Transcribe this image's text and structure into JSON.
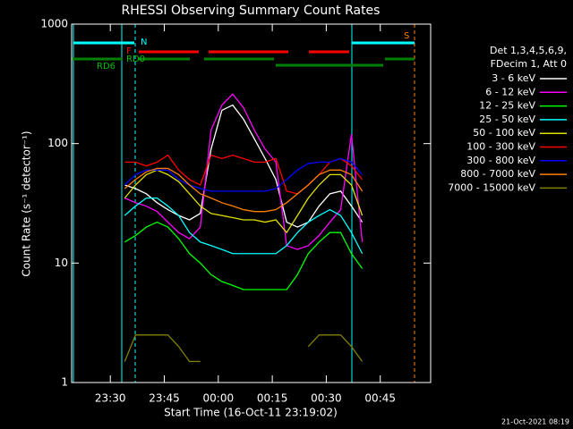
{
  "chart_data": {
    "type": "line",
    "title": "RHESSI Observing Summary Count Rates",
    "x_label": "Start Time (16-Oct-11 23:19:02)",
    "y_label": "Count Rate (s⁻¹ detector⁻¹)",
    "legend_header": [
      "Det 1,3,4,5,6,9,",
      "FDecim 1, Att 0"
    ],
    "annotations": [
      "N",
      "F",
      "RD0",
      "RD6",
      "S"
    ],
    "footer": "21-Oct-2021 08:19",
    "log_y": true,
    "xlim": [
      19.25,
      119
    ],
    "ylim": [
      1,
      1000
    ],
    "xticks": [
      {
        "value": 30,
        "label": "23:30"
      },
      {
        "value": 45,
        "label": "23:45"
      },
      {
        "value": 60,
        "label": "00:00"
      },
      {
        "value": 75,
        "label": "00:15"
      },
      {
        "value": 90,
        "label": "00:30"
      },
      {
        "value": 105,
        "label": "00:45"
      }
    ],
    "yticks": [
      1,
      10,
      100,
      1000
    ],
    "x": [
      34,
      37,
      40,
      43,
      46,
      49,
      52,
      55,
      58,
      61,
      64,
      67,
      70,
      73,
      76,
      79,
      82,
      85,
      88,
      91,
      94,
      97,
      100
    ],
    "series": [
      {
        "name": "3 - 6 keV",
        "color": "#ffffff",
        "values": [
          45,
          42,
          38,
          32,
          28,
          25,
          23,
          26,
          90,
          190,
          210,
          160,
          110,
          75,
          50,
          22,
          20,
          22,
          30,
          38,
          40,
          30,
          22
        ]
      },
      {
        "name": "6 - 12 keV",
        "color": "#ff00ff",
        "values": [
          35,
          32,
          30,
          27,
          22,
          18,
          16,
          20,
          130,
          210,
          260,
          200,
          130,
          90,
          70,
          14,
          13,
          14,
          17,
          22,
          28,
          120,
          15
        ]
      },
      {
        "name": "12 - 25 keV",
        "color": "#00ff00",
        "values": [
          15,
          17,
          20,
          22,
          20,
          16,
          12,
          10,
          8,
          7,
          6.5,
          6,
          6,
          6,
          6,
          6,
          8,
          12,
          15,
          18,
          18,
          12,
          9
        ]
      },
      {
        "name": "25 - 50 keV",
        "color": "#00ffff",
        "values": [
          25,
          30,
          35,
          35,
          30,
          25,
          18,
          15,
          14,
          13,
          12,
          12,
          12,
          12,
          12,
          14,
          18,
          22,
          25,
          28,
          25,
          18,
          12
        ]
      },
      {
        "name": "50 - 100 keV",
        "color": "#e0e000",
        "values": [
          35,
          45,
          55,
          60,
          55,
          48,
          38,
          30,
          26,
          25,
          24,
          23,
          23,
          22,
          23,
          18,
          25,
          35,
          45,
          55,
          55,
          45,
          25
        ]
      },
      {
        "name": "100 - 300 keV",
        "color": "#ff0000",
        "values": [
          70,
          70,
          65,
          70,
          80,
          60,
          50,
          45,
          80,
          75,
          80,
          75,
          70,
          70,
          75,
          40,
          38,
          45,
          55,
          70,
          75,
          65,
          50
        ]
      },
      {
        "name": "300 - 800 keV",
        "color": "#0000ff",
        "values": [
          45,
          55,
          60,
          60,
          60,
          50,
          45,
          42,
          40,
          40,
          40,
          40,
          40,
          40,
          42,
          50,
          60,
          68,
          70,
          70,
          75,
          70,
          55
        ]
      },
      {
        "name": "800 - 7000 keV",
        "color": "#ff8000",
        "values": [
          42,
          50,
          58,
          62,
          62,
          55,
          45,
          38,
          35,
          32,
          30,
          28,
          27,
          27,
          28,
          32,
          38,
          45,
          55,
          60,
          60,
          55,
          40
        ]
      },
      {
        "name": "7000 - 15000 keV",
        "color": "#808000",
        "values": [
          1.5,
          2.5,
          2.5,
          2.5,
          2.5,
          2,
          1.5,
          1.5,
          null,
          null,
          null,
          null,
          null,
          null,
          null,
          null,
          null,
          2,
          2.5,
          2.5,
          2.5,
          2,
          1.5
        ]
      }
    ]
  }
}
